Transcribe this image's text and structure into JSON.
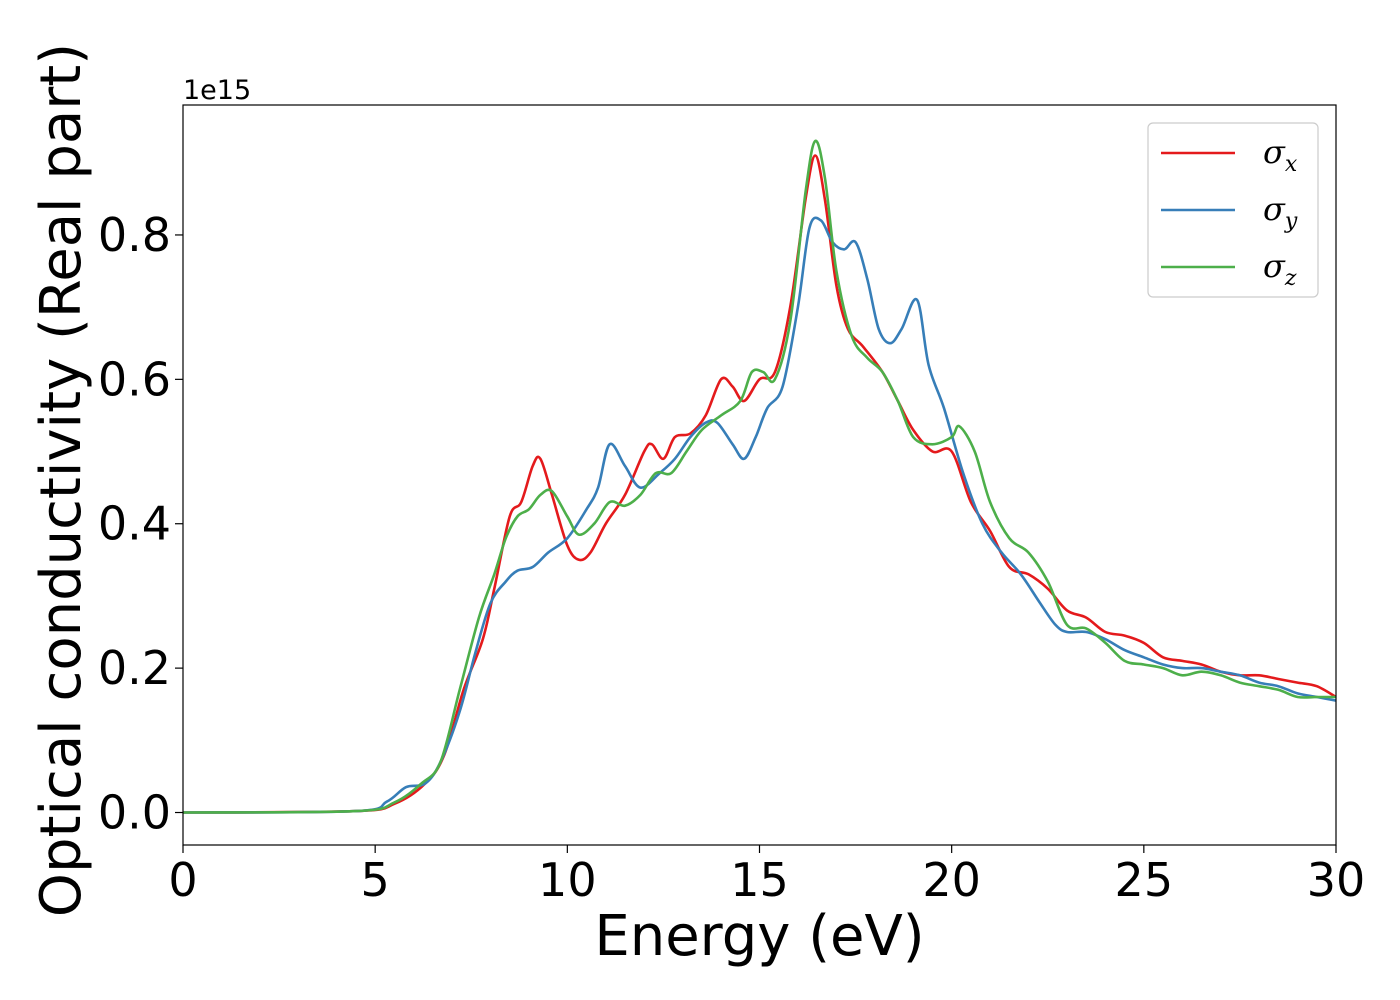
{
  "chart_data": {
    "type": "line",
    "xlabel": "Energy (eV)",
    "ylabel": "Optical conductivity (Real part)",
    "y_offset_text": "1e15",
    "xlim": [
      0,
      30
    ],
    "ylim": [
      -0.045,
      0.98
    ],
    "x_ticks": [
      0,
      5,
      10,
      15,
      20,
      25,
      30
    ],
    "x_tick_labels": [
      "0",
      "5",
      "10",
      "15",
      "20",
      "25",
      "30"
    ],
    "y_ticks": [
      0.0,
      0.2,
      0.4,
      0.6,
      0.8
    ],
    "y_tick_labels": [
      "0.0",
      "0.2",
      "0.4",
      "0.6",
      "0.8"
    ],
    "grid": false,
    "legend_position": "top-right",
    "series": [
      {
        "name": "σx",
        "symbol": "σ",
        "subscript": "x",
        "color": "#e41a1c",
        "points": [
          [
            0,
            0
          ],
          [
            4.5,
            0.002
          ],
          [
            5.5,
            0.012
          ],
          [
            6.3,
            0.04
          ],
          [
            6.8,
            0.08
          ],
          [
            7.3,
            0.17
          ],
          [
            7.8,
            0.24
          ],
          [
            8.1,
            0.31
          ],
          [
            8.5,
            0.41
          ],
          [
            8.8,
            0.43
          ],
          [
            9.1,
            0.48
          ],
          [
            9.3,
            0.49
          ],
          [
            9.6,
            0.44
          ],
          [
            10,
            0.37
          ],
          [
            10.3,
            0.35
          ],
          [
            10.6,
            0.36
          ],
          [
            11,
            0.4
          ],
          [
            11.5,
            0.44
          ],
          [
            12,
            0.5
          ],
          [
            12.2,
            0.51
          ],
          [
            12.5,
            0.49
          ],
          [
            12.8,
            0.52
          ],
          [
            13.2,
            0.525
          ],
          [
            13.6,
            0.55
          ],
          [
            14,
            0.6
          ],
          [
            14.3,
            0.59
          ],
          [
            14.6,
            0.57
          ],
          [
            15,
            0.6
          ],
          [
            15.4,
            0.61
          ],
          [
            15.8,
            0.7
          ],
          [
            16.2,
            0.85
          ],
          [
            16.45,
            0.91
          ],
          [
            16.7,
            0.85
          ],
          [
            17,
            0.73
          ],
          [
            17.3,
            0.67
          ],
          [
            17.7,
            0.645
          ],
          [
            18.2,
            0.61
          ],
          [
            18.6,
            0.57
          ],
          [
            19,
            0.53
          ],
          [
            19.5,
            0.5
          ],
          [
            20,
            0.5
          ],
          [
            20.5,
            0.43
          ],
          [
            21,
            0.39
          ],
          [
            21.5,
            0.34
          ],
          [
            22,
            0.33
          ],
          [
            22.5,
            0.31
          ],
          [
            23,
            0.28
          ],
          [
            23.5,
            0.27
          ],
          [
            24,
            0.25
          ],
          [
            24.5,
            0.245
          ],
          [
            25,
            0.235
          ],
          [
            25.5,
            0.215
          ],
          [
            26,
            0.21
          ],
          [
            26.5,
            0.205
          ],
          [
            27,
            0.195
          ],
          [
            27.5,
            0.19
          ],
          [
            28,
            0.19
          ],
          [
            28.5,
            0.185
          ],
          [
            29,
            0.18
          ],
          [
            29.5,
            0.175
          ],
          [
            30,
            0.16
          ]
        ]
      },
      {
        "name": "σy",
        "symbol": "σ",
        "subscript": "y",
        "color": "#377eb8",
        "points": [
          [
            0,
            0
          ],
          [
            4.5,
            0.002
          ],
          [
            5.3,
            0.015
          ],
          [
            5.8,
            0.035
          ],
          [
            6.3,
            0.04
          ],
          [
            6.7,
            0.07
          ],
          [
            7.2,
            0.14
          ],
          [
            7.6,
            0.22
          ],
          [
            8,
            0.29
          ],
          [
            8.4,
            0.32
          ],
          [
            8.7,
            0.335
          ],
          [
            9.1,
            0.34
          ],
          [
            9.5,
            0.36
          ],
          [
            10,
            0.38
          ],
          [
            10.5,
            0.42
          ],
          [
            10.8,
            0.45
          ],
          [
            11.1,
            0.51
          ],
          [
            11.5,
            0.48
          ],
          [
            11.9,
            0.45
          ],
          [
            12.4,
            0.47
          ],
          [
            12.8,
            0.49
          ],
          [
            13.2,
            0.52
          ],
          [
            13.6,
            0.54
          ],
          [
            13.9,
            0.54
          ],
          [
            14.3,
            0.51
          ],
          [
            14.6,
            0.49
          ],
          [
            14.9,
            0.52
          ],
          [
            15.2,
            0.56
          ],
          [
            15.6,
            0.59
          ],
          [
            16,
            0.7
          ],
          [
            16.3,
            0.81
          ],
          [
            16.6,
            0.82
          ],
          [
            16.9,
            0.79
          ],
          [
            17.2,
            0.78
          ],
          [
            17.5,
            0.79
          ],
          [
            17.8,
            0.74
          ],
          [
            18.1,
            0.67
          ],
          [
            18.4,
            0.65
          ],
          [
            18.7,
            0.67
          ],
          [
            19.1,
            0.71
          ],
          [
            19.4,
            0.62
          ],
          [
            19.8,
            0.56
          ],
          [
            20.3,
            0.47
          ],
          [
            20.8,
            0.4
          ],
          [
            21.3,
            0.36
          ],
          [
            21.8,
            0.33
          ],
          [
            22.3,
            0.29
          ],
          [
            22.7,
            0.26
          ],
          [
            23,
            0.25
          ],
          [
            23.5,
            0.25
          ],
          [
            24,
            0.24
          ],
          [
            24.5,
            0.225
          ],
          [
            25,
            0.215
          ],
          [
            25.5,
            0.205
          ],
          [
            26,
            0.2
          ],
          [
            26.5,
            0.2
          ],
          [
            27,
            0.195
          ],
          [
            27.5,
            0.19
          ],
          [
            28,
            0.18
          ],
          [
            28.5,
            0.175
          ],
          [
            29,
            0.165
          ],
          [
            29.5,
            0.16
          ],
          [
            30,
            0.155
          ]
        ]
      },
      {
        "name": "σz",
        "symbol": "σ",
        "subscript": "z",
        "color": "#4daf4a",
        "points": [
          [
            0,
            0
          ],
          [
            4.5,
            0.002
          ],
          [
            5.5,
            0.014
          ],
          [
            6.2,
            0.04
          ],
          [
            6.7,
            0.07
          ],
          [
            7.2,
            0.17
          ],
          [
            7.7,
            0.27
          ],
          [
            8.1,
            0.33
          ],
          [
            8.4,
            0.38
          ],
          [
            8.7,
            0.41
          ],
          [
            9,
            0.42
          ],
          [
            9.3,
            0.44
          ],
          [
            9.6,
            0.445
          ],
          [
            10,
            0.41
          ],
          [
            10.3,
            0.385
          ],
          [
            10.7,
            0.4
          ],
          [
            11.1,
            0.43
          ],
          [
            11.5,
            0.425
          ],
          [
            11.9,
            0.44
          ],
          [
            12.3,
            0.47
          ],
          [
            12.7,
            0.47
          ],
          [
            13.1,
            0.5
          ],
          [
            13.5,
            0.53
          ],
          [
            14,
            0.55
          ],
          [
            14.5,
            0.57
          ],
          [
            14.8,
            0.61
          ],
          [
            15.1,
            0.61
          ],
          [
            15.4,
            0.6
          ],
          [
            15.8,
            0.68
          ],
          [
            16.2,
            0.86
          ],
          [
            16.45,
            0.93
          ],
          [
            16.7,
            0.88
          ],
          [
            17,
            0.75
          ],
          [
            17.4,
            0.66
          ],
          [
            17.8,
            0.63
          ],
          [
            18.2,
            0.61
          ],
          [
            18.6,
            0.57
          ],
          [
            19,
            0.52
          ],
          [
            19.5,
            0.51
          ],
          [
            20,
            0.52
          ],
          [
            20.2,
            0.535
          ],
          [
            20.6,
            0.5
          ],
          [
            21,
            0.43
          ],
          [
            21.5,
            0.38
          ],
          [
            22,
            0.36
          ],
          [
            22.5,
            0.32
          ],
          [
            23,
            0.26
          ],
          [
            23.5,
            0.255
          ],
          [
            24,
            0.235
          ],
          [
            24.5,
            0.21
          ],
          [
            25,
            0.205
          ],
          [
            25.5,
            0.2
          ],
          [
            26,
            0.19
          ],
          [
            26.5,
            0.195
          ],
          [
            27,
            0.19
          ],
          [
            27.5,
            0.18
          ],
          [
            28,
            0.175
          ],
          [
            28.5,
            0.17
          ],
          [
            29,
            0.16
          ],
          [
            29.5,
            0.16
          ],
          [
            30,
            0.16
          ]
        ]
      }
    ]
  }
}
